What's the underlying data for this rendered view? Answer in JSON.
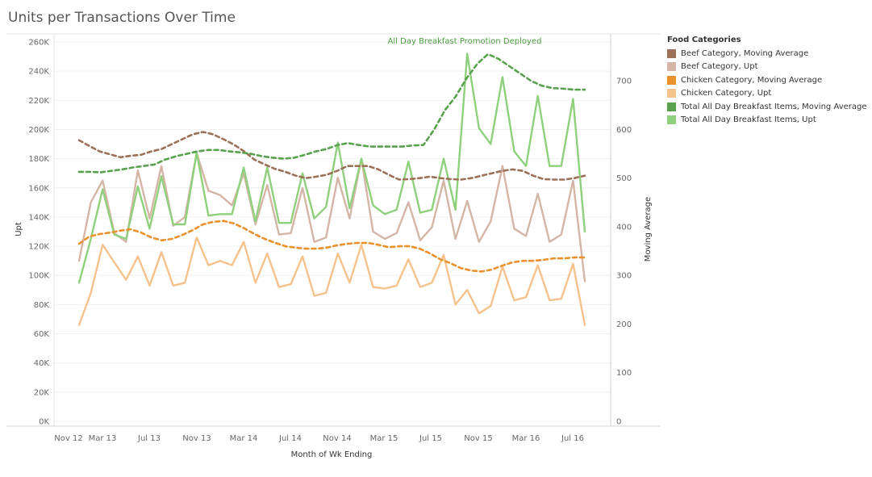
{
  "chart_data": {
    "type": "line",
    "title": "Units per Transactions Over Time",
    "xlabel": "Month of Wk Ending",
    "ylabel": "Upt",
    "y2label": "Moving Average",
    "x_ticks": [
      "Nov 12",
      "Mar 13",
      "Jul 13",
      "Nov 13",
      "Mar 14",
      "Jul 14",
      "Nov 14",
      "Mar 15",
      "Jul 15",
      "Nov 15",
      "Mar 16",
      "Jul 16"
    ],
    "y_ticks": [
      "0K",
      "20K",
      "40K",
      "60K",
      "80K",
      "100K",
      "120K",
      "140K",
      "160K",
      "180K",
      "200K",
      "220K",
      "240K",
      "260K"
    ],
    "y2_ticks": [
      "0",
      "100",
      "200",
      "300",
      "400",
      "500",
      "600",
      "700"
    ],
    "ylim": [
      0,
      260000
    ],
    "y2lim": [
      0,
      780
    ],
    "annotation": "All Day Breakfast Promotion Deployed",
    "legend_title": "Food Categories",
    "legend_position": "right",
    "series": [
      {
        "name": "Beef Category, Moving Average",
        "axis": "right",
        "style": "dashed",
        "color": "#9c7158",
        "values": [
          578,
          566,
          555,
          549,
          543,
          546,
          548,
          555,
          560,
          570,
          580,
          590,
          595,
          590,
          580,
          569,
          555,
          538,
          528,
          519,
          513,
          505,
          500,
          503,
          507,
          515,
          525,
          525,
          525,
          518,
          507,
          497,
          498,
          500,
          503,
          500,
          498,
          497,
          500,
          505,
          510,
          515,
          518,
          515,
          505,
          498,
          497,
          497,
          500,
          505
        ]
      },
      {
        "name": "Beef Category, Upt",
        "axis": "left",
        "style": "solid",
        "color": "#d4b5a6",
        "values": [
          110000,
          150000,
          165000,
          129000,
          123000,
          172000,
          139000,
          175000,
          134000,
          140000,
          184000,
          158000,
          155000,
          148000,
          170000,
          135000,
          162000,
          128000,
          129000,
          160000,
          123000,
          126000,
          167000,
          139000,
          180000,
          130000,
          125000,
          129000,
          150000,
          124000,
          133000,
          165000,
          125000,
          151000,
          123000,
          137000,
          175000,
          132000,
          127000,
          156000,
          123000,
          128000,
          165000,
          96000
        ]
      },
      {
        "name": "Chicken Category, Moving Average",
        "axis": "right",
        "style": "dashed",
        "color": "#e8912d",
        "values": [
          365,
          380,
          385,
          388,
          392,
          395,
          388,
          378,
          372,
          375,
          383,
          393,
          405,
          410,
          412,
          407,
          397,
          385,
          375,
          367,
          360,
          357,
          355,
          355,
          357,
          362,
          365,
          367,
          367,
          363,
          358,
          360,
          360,
          355,
          345,
          333,
          325,
          315,
          310,
          308,
          312,
          320,
          327,
          330,
          330,
          332,
          335,
          335,
          337,
          337
        ]
      },
      {
        "name": "Chicken Category, Upt",
        "axis": "left",
        "style": "solid",
        "color": "#f6c28b",
        "values": [
          66000,
          88000,
          121000,
          109000,
          97000,
          113000,
          93000,
          116000,
          93000,
          95000,
          126000,
          107000,
          110000,
          107000,
          123000,
          95000,
          115000,
          92000,
          94000,
          113000,
          86000,
          88000,
          115000,
          95000,
          121000,
          92000,
          91000,
          93000,
          111000,
          92000,
          95000,
          114000,
          80000,
          90000,
          74000,
          79000,
          106000,
          83000,
          85000,
          107000,
          83000,
          84000,
          108000,
          66000
        ]
      },
      {
        "name": "Total All Day Breakfast Items, Moving Average",
        "axis": "right",
        "style": "dashed",
        "color": "#59a14f",
        "values": [
          513,
          513,
          512,
          515,
          518,
          522,
          525,
          528,
          538,
          545,
          550,
          555,
          558,
          558,
          555,
          553,
          550,
          545,
          542,
          540,
          542,
          548,
          555,
          560,
          568,
          572,
          568,
          565,
          565,
          565,
          565,
          567,
          568,
          600,
          640,
          668,
          705,
          735,
          755,
          745,
          730,
          715,
          700,
          690,
          685,
          684,
          682,
          682
        ]
      },
      {
        "name": "Total All Day Breakfast Items, Upt",
        "axis": "left",
        "style": "solid",
        "color": "#8fd07d",
        "values": [
          95000,
          125000,
          159000,
          128000,
          125000,
          161000,
          132000,
          168000,
          135000,
          135000,
          184000,
          141000,
          142000,
          142000,
          174000,
          137000,
          174000,
          136000,
          136000,
          170000,
          139000,
          147000,
          191000,
          146000,
          180000,
          148000,
          142000,
          145000,
          178000,
          143000,
          145000,
          180000,
          145000,
          252000,
          201000,
          190000,
          236000,
          185000,
          175000,
          223000,
          175000,
          175000,
          221000,
          130000
        ]
      }
    ]
  }
}
